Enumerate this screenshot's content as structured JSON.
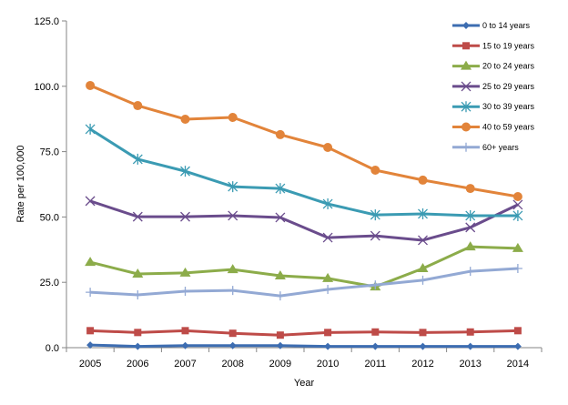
{
  "chart_data": {
    "type": "line",
    "xlabel": "Year",
    "ylabel": "Rate per 100,000",
    "ylim": [
      0,
      125
    ],
    "yticks": [
      "0.0",
      "25.0",
      "50.0",
      "75.0",
      "100.0",
      "125.0"
    ],
    "ytick_values": [
      0,
      25,
      50,
      75,
      100,
      125
    ],
    "categories": [
      "2005",
      "2006",
      "2007",
      "2008",
      "2009",
      "2010",
      "2011",
      "2012",
      "2013",
      "2014"
    ],
    "grid": false,
    "legend": "right",
    "series": [
      {
        "name": "0 to 14 years",
        "color": "#3d6db1",
        "marker": "diamond",
        "values": [
          1.0,
          0.5,
          0.8,
          0.8,
          0.8,
          0.5,
          0.5,
          0.5,
          0.5,
          0.5
        ]
      },
      {
        "name": "15 to 19 years",
        "color": "#be4b48",
        "marker": "square",
        "values": [
          6.5,
          5.8,
          6.5,
          5.5,
          4.8,
          5.8,
          6.0,
          5.8,
          6.0,
          6.5
        ]
      },
      {
        "name": "20 to 24 years",
        "color": "#8cac4a",
        "marker": "triangle",
        "values": [
          32.7,
          28.2,
          28.6,
          29.9,
          27.5,
          26.5,
          23.3,
          30.3,
          38.6,
          38.0
        ]
      },
      {
        "name": "25 to 29 years",
        "color": "#6a4c8c",
        "marker": "x",
        "values": [
          56.1,
          50.1,
          50.1,
          50.5,
          49.8,
          42.1,
          42.8,
          41.1,
          46.0,
          54.7
        ]
      },
      {
        "name": "30 to 39 years",
        "color": "#3b9bb3",
        "marker": "star",
        "values": [
          83.6,
          72.1,
          67.5,
          61.6,
          60.9,
          55.0,
          50.8,
          51.2,
          50.5,
          50.5
        ]
      },
      {
        "name": "40 to 59 years",
        "color": "#e2843a",
        "marker": "circle",
        "values": [
          100.3,
          92.6,
          87.4,
          88.1,
          81.5,
          76.6,
          67.9,
          64.1,
          60.9,
          57.8
        ]
      },
      {
        "name": "60+ years",
        "color": "#93a9d4",
        "marker": "plus",
        "values": [
          21.2,
          20.2,
          21.6,
          21.9,
          19.8,
          22.3,
          24.0,
          25.8,
          29.2,
          30.3
        ]
      }
    ]
  }
}
